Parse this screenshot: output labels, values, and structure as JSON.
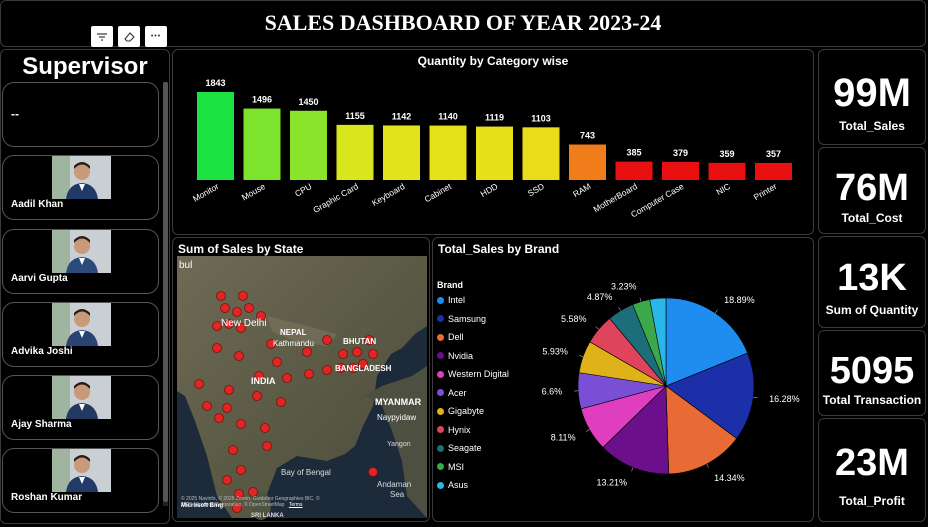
{
  "header": {
    "title": "SALES DASHBOARD OF YEAR 2023-24"
  },
  "toolbar": {
    "filter_icon": "filter-icon",
    "eraser_icon": "eraser-icon",
    "more_icon": "more-icon",
    "more_glyph": "•••"
  },
  "supervisor": {
    "title": "Supervisor",
    "blank_label": "--",
    "people": [
      "Aadil Khan",
      "Aarvi Gupta",
      "Advika Joshi",
      "Ajay Sharma",
      "Roshan Kumar"
    ]
  },
  "bar_chart": {
    "title": "Quantity by Category wise",
    "chart_data": {
      "type": "bar",
      "categories": [
        "Monitor",
        "Mouse",
        "CPU",
        "Graphic Card",
        "Keyboard",
        "Cabinet",
        "HDD",
        "SSD",
        "RAM",
        "MotherBoard",
        "Computer Case",
        "NIC",
        "Printer"
      ],
      "values": [
        1843,
        1496,
        1450,
        1155,
        1142,
        1140,
        1119,
        1103,
        743,
        385,
        379,
        359,
        357
      ],
      "colors": [
        "#1be441",
        "#7ee32c",
        "#8be42b",
        "#d9e61e",
        "#e2e31b",
        "#e5e21a",
        "#e7e018",
        "#e8dd18",
        "#f07c1a",
        "#e81010",
        "#e81010",
        "#e81010",
        "#e81010"
      ],
      "ylim": [
        0,
        1843
      ]
    }
  },
  "map": {
    "title": "Sum of Sales by State",
    "labels": [
      "bul",
      "New Delhi",
      "NEPAL",
      "Kathmandu",
      "BHUTAN",
      "BANGLADESH",
      "INDIA",
      "MYANMAR",
      "Naypyidaw",
      "Bay of Bengal",
      "Andaman",
      "Sea",
      "SRI LANKA",
      "Yangon"
    ],
    "attribution": "© 2025 Navinfo, © 2025 Zenrin, Guidebor Geographies BIC, ©",
    "attribution2": "2025 Microsoft Corporation, © OpenStreetMap",
    "terms": "Terms",
    "bing": "Microsoft Bing"
  },
  "pie_chart": {
    "title": "Total_Sales by Brand",
    "legend_title": "Brand",
    "chart_data": {
      "type": "pie",
      "labels": [
        "Intel",
        "Samsung",
        "Dell",
        "Nvidia",
        "Western Digital",
        "Acer",
        "Gigabyte",
        "Hynix",
        "Seagate",
        "MSI",
        "Asus"
      ],
      "values": [
        18.89,
        16.28,
        14.34,
        13.21,
        8.11,
        6.6,
        5.93,
        5.58,
        4.87,
        3.23,
        2.96
      ],
      "data_labels": [
        "18.89%",
        "16.28%",
        "14.34%",
        "13.21%",
        "8.11%",
        "6.6%",
        "5.93%",
        "5.58%",
        "4.87%",
        "3.23%",
        ""
      ],
      "colors": [
        "#1e8cf0",
        "#1a2fa8",
        "#e86a34",
        "#6b0f8a",
        "#df3fbe",
        "#7a4fd6",
        "#e0b21a",
        "#e0435c",
        "#1b6e7a",
        "#3ba84a",
        "#29b6e8"
      ]
    }
  },
  "kpis": [
    {
      "value": "99M",
      "label": "Total_Sales"
    },
    {
      "value": "76M",
      "label": "Total_Cost"
    },
    {
      "value": "13K",
      "label": "Sum of Quantity"
    },
    {
      "value": "5095",
      "label": "Total Transaction"
    },
    {
      "value": "23M",
      "label": "Total_Profit"
    }
  ]
}
